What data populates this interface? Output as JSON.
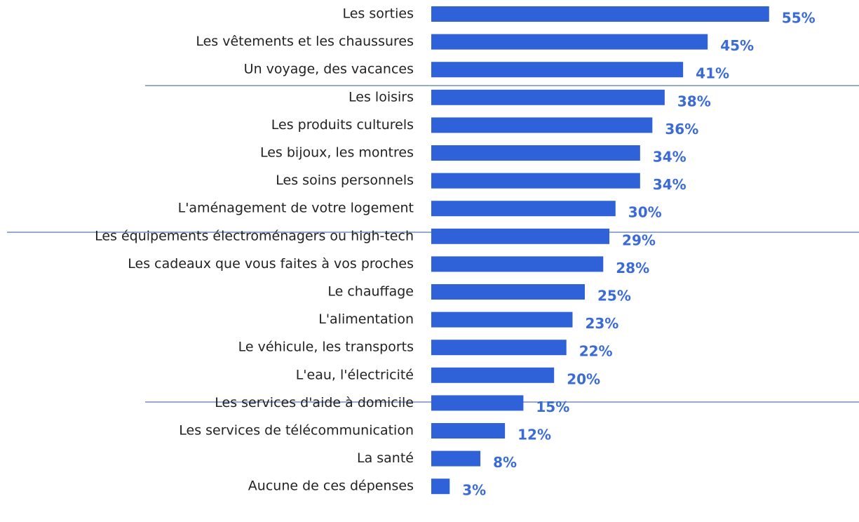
{
  "chart_data": {
    "type": "barh",
    "categories": [
      "Les sorties",
      "Les vêtements et les chaussures",
      "Un voyage, des vacances",
      "Les loisirs",
      "Les produits culturels",
      "Les bijoux, les montres",
      "Les soins personnels",
      "L'aménagement de votre logement",
      "Les équipements électroménagers ou high-tech",
      "Les cadeaux que vous faites à vos proches",
      "Le chauffage",
      "L'alimentation",
      "Le véhicule, les transports",
      "L'eau, l'électricité",
      "Les services d'aide à domicile",
      "Les services de télécommunication",
      "La santé",
      "Aucune de ces dépenses"
    ],
    "values": [
      55,
      45,
      41,
      38,
      36,
      34,
      34,
      30,
      29,
      28,
      25,
      23,
      22,
      20,
      15,
      12,
      8,
      3
    ],
    "value_labels": [
      "55%",
      "45%",
      "41%",
      "38%",
      "36%",
      "34%",
      "34%",
      "30%",
      "29%",
      "28%",
      "25%",
      "23%",
      "22%",
      "20%",
      "15%",
      "12%",
      "8%",
      "3%"
    ],
    "color": "#2f62d9",
    "label_color": "#3a6bd6"
  }
}
